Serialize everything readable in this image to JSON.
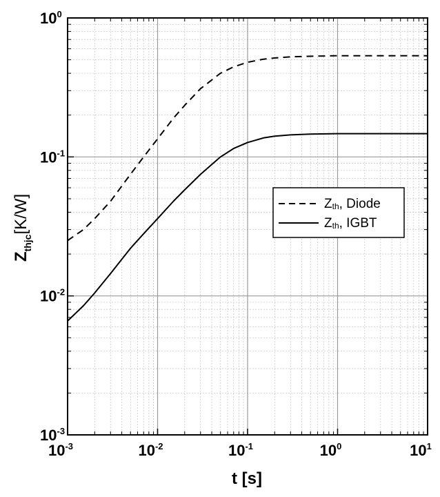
{
  "chart_data": {
    "type": "line",
    "xscale": "log",
    "yscale": "log",
    "xlim": [
      0.001,
      10
    ],
    "ylim": [
      0.001,
      1
    ],
    "grid": true,
    "xlabel": "t [s]",
    "ylabel": {
      "main": "Z",
      "sub": "thjc",
      "unit": "[K/W]"
    },
    "xticks": [
      {
        "base": "10",
        "exp": "-3"
      },
      {
        "base": "10",
        "exp": "-2"
      },
      {
        "base": "10",
        "exp": "-1"
      },
      {
        "base": "10",
        "exp": "0"
      },
      {
        "base": "10",
        "exp": "1"
      }
    ],
    "yticks": [
      {
        "base": "10",
        "exp": "-3"
      },
      {
        "base": "10",
        "exp": "-2"
      },
      {
        "base": "10",
        "exp": "-1"
      },
      {
        "base": "10",
        "exp": "0"
      }
    ],
    "legend_position": "center-right",
    "series": [
      {
        "name": "Zth, Diode",
        "label_main": "Z",
        "label_sub": "th",
        "label_rest": ", Diode",
        "line_style": "dashed",
        "x": [
          0.001,
          0.0015,
          0.002,
          0.003,
          0.005,
          0.007,
          0.01,
          0.015,
          0.02,
          0.03,
          0.05,
          0.07,
          0.1,
          0.15,
          0.2,
          0.3,
          0.5,
          1,
          2,
          5,
          10
        ],
        "y": [
          0.025,
          0.03,
          0.036,
          0.048,
          0.075,
          0.1,
          0.135,
          0.19,
          0.235,
          0.31,
          0.4,
          0.445,
          0.48,
          0.505,
          0.515,
          0.525,
          0.53,
          0.535,
          0.535,
          0.535,
          0.535
        ]
      },
      {
        "name": "Zth, IGBT",
        "label_main": "Z",
        "label_sub": "th",
        "label_rest": ", IGBT",
        "line_style": "solid",
        "x": [
          0.001,
          0.0015,
          0.002,
          0.003,
          0.005,
          0.007,
          0.01,
          0.015,
          0.02,
          0.03,
          0.05,
          0.07,
          0.1,
          0.15,
          0.2,
          0.3,
          0.5,
          1,
          2,
          5,
          10
        ],
        "y": [
          0.0066,
          0.0085,
          0.0105,
          0.0145,
          0.022,
          0.028,
          0.036,
          0.048,
          0.058,
          0.075,
          0.1,
          0.115,
          0.127,
          0.137,
          0.141,
          0.144,
          0.146,
          0.147,
          0.147,
          0.147,
          0.147
        ]
      }
    ]
  }
}
